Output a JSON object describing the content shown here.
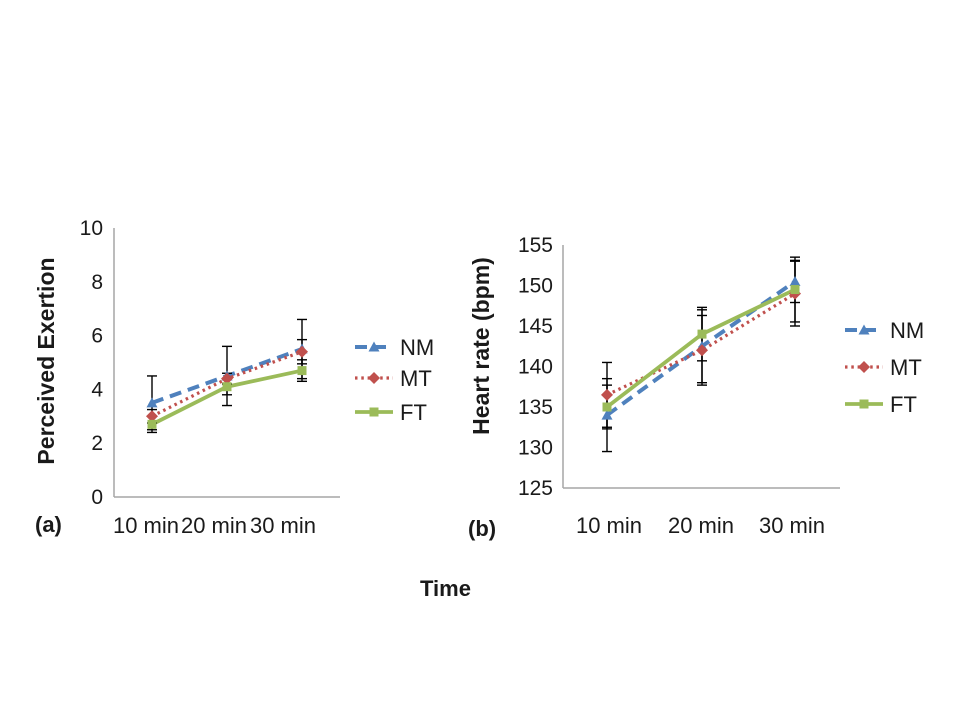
{
  "page": {
    "background_color": "#ffffff"
  },
  "panel_a_label": "(a)",
  "panel_b_label": "(b)",
  "x_axis_shared_title": "Time",
  "colors": {
    "nm_blue": "#4F81BD",
    "mt_red": "#C0504D",
    "ft_green": "#9BBB59",
    "error_bar_black": "#000000",
    "axis_gray": "#A6A6A6",
    "text_black": "#1A1A1A"
  },
  "chart_data": [
    {
      "id": "perceived-exertion-chart",
      "type": "line",
      "panel": "(a)",
      "title": "",
      "ylabel": "Perceived Exertion",
      "xlabel": "Time",
      "categories": [
        "10 min",
        "20 min",
        "30 min"
      ],
      "ylim": [
        0,
        10
      ],
      "yticks": [
        0,
        2,
        4,
        6,
        8,
        10
      ],
      "grid": false,
      "legend_position": "right",
      "error_bars": true,
      "series": [
        {
          "name": "NM",
          "values": [
            3.5,
            4.5,
            5.5
          ],
          "err": [
            1.0,
            1.1,
            1.1
          ],
          "color": "#4F81BD",
          "line": "dashed",
          "marker": "triangle"
        },
        {
          "name": "MT",
          "values": [
            3.0,
            4.4,
            5.4
          ],
          "err": [
            0.25,
            0.2,
            0.45
          ],
          "color": "#C0504D",
          "line": "dotted",
          "marker": "diamond"
        },
        {
          "name": "FT",
          "values": [
            2.7,
            4.1,
            4.7
          ],
          "err": [
            0.3,
            0.3,
            0.4
          ],
          "color": "#9BBB59",
          "line": "solid",
          "marker": "square"
        }
      ]
    },
    {
      "id": "heart-rate-chart",
      "type": "line",
      "panel": "(b)",
      "title": "",
      "ylabel": "Heart rate (bpm)",
      "xlabel": "Time",
      "categories": [
        "10 min",
        "20 min",
        "30 min"
      ],
      "ylim": [
        125,
        155
      ],
      "yticks": [
        125,
        130,
        135,
        140,
        145,
        150,
        155
      ],
      "grid": false,
      "legend_position": "right",
      "error_bars": true,
      "series": [
        {
          "name": "NM",
          "values": [
            134,
            142.5,
            150.5
          ],
          "err": [
            4.5,
            4.5,
            2.6
          ],
          "color": "#4F81BD",
          "line": "dashed",
          "marker": "triangle"
        },
        {
          "name": "MT",
          "values": [
            136.5,
            142,
            149
          ],
          "err": [
            4.0,
            4.3,
            4.0
          ],
          "color": "#C0504D",
          "line": "dotted",
          "marker": "diamond"
        },
        {
          "name": "FT",
          "values": [
            135,
            144,
            149.5
          ],
          "err": [
            2.7,
            3.3,
            4.0
          ],
          "color": "#9BBB59",
          "line": "solid",
          "marker": "square"
        }
      ]
    }
  ]
}
